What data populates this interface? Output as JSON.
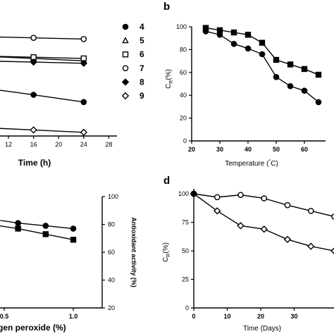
{
  "chart_data": [
    {
      "panel": "a",
      "type": "line",
      "title": "",
      "xlabel": "Time (h)",
      "ylabel": "",
      "xlim": [
        4,
        28
      ],
      "ylim": [
        0,
        100
      ],
      "x_ticks": [
        "12",
        "16",
        "20",
        "24",
        "28"
      ],
      "legend_position": "right",
      "legend": [
        "4",
        "5",
        "6",
        "7",
        "8",
        "9"
      ],
      "series": [
        {
          "name": "4",
          "marker": "circle-filled",
          "x": [
            16,
            24
          ],
          "y": [
            34,
            28
          ]
        },
        {
          "name": "5",
          "marker": "triangle-open",
          "x": [
            16,
            24
          ],
          "y": [
            64,
            62
          ]
        },
        {
          "name": "6",
          "marker": "square-open",
          "x": [
            16,
            24
          ],
          "y": [
            65,
            64
          ]
        },
        {
          "name": "7",
          "marker": "circle-open",
          "x": [
            16,
            24
          ],
          "y": [
            81,
            80
          ]
        },
        {
          "name": "8",
          "marker": "diamond-filled",
          "x": [
            16,
            24
          ],
          "y": [
            61,
            60
          ]
        },
        {
          "name": "9",
          "marker": "diamond-open",
          "x": [
            16,
            24
          ],
          "y": [
            5,
            3
          ]
        }
      ]
    },
    {
      "panel": "b",
      "type": "line",
      "title": "",
      "xlabel": "Temperature (°C)",
      "ylabel": "C_R(%)",
      "xlim": [
        20,
        70
      ],
      "ylim": [
        0,
        100
      ],
      "x_ticks": [
        "20",
        "30",
        "40",
        "50",
        "60"
      ],
      "y_ticks": [
        "0",
        "20",
        "40",
        "60",
        "80",
        "100"
      ],
      "series": [
        {
          "marker": "square-filled",
          "x": [
            25,
            30,
            35,
            40,
            45,
            50,
            55,
            60,
            65
          ],
          "y": [
            99,
            97,
            95,
            93,
            86,
            71,
            67,
            63,
            58
          ]
        },
        {
          "marker": "circle-filled",
          "x": [
            25,
            30,
            35,
            40,
            45,
            50,
            55,
            60,
            65
          ],
          "y": [
            96,
            93,
            85,
            81,
            76,
            56,
            48,
            44,
            34
          ]
        }
      ]
    },
    {
      "panel": "c",
      "type": "line",
      "title": "",
      "xlabel": "...gen peroxide (%)",
      "ylabel": "Antioxidant activity (%)",
      "xlim": [
        0.5,
        1.1
      ],
      "ylim": [
        20,
        100
      ],
      "x_ticks": [
        "0.5",
        "1.0"
      ],
      "y_ticks": [
        "20",
        "40",
        "60",
        "80",
        "100"
      ],
      "series": [
        {
          "marker": "circle-filled",
          "x": [
            0.4,
            0.6,
            0.8,
            1.0
          ],
          "y": [
            84,
            81,
            79,
            77
          ]
        },
        {
          "marker": "square-filled",
          "x": [
            0.4,
            0.6,
            0.8,
            1.0
          ],
          "y": [
            80,
            77,
            73,
            69
          ]
        }
      ]
    },
    {
      "panel": "d",
      "type": "line",
      "title": "",
      "xlabel": "Time (Days)",
      "ylabel": "C_R(%)",
      "xlim": [
        0,
        42
      ],
      "ylim": [
        0,
        100
      ],
      "x_ticks": [
        "0",
        "10",
        "20",
        "30"
      ],
      "y_ticks": [
        "0",
        "25",
        "50",
        "75",
        "100"
      ],
      "series": [
        {
          "marker": "circle-open",
          "x": [
            0,
            7,
            14,
            21,
            28,
            35,
            42
          ],
          "y": [
            100,
            97,
            99,
            96,
            90,
            85,
            80
          ]
        },
        {
          "marker": "diamond-open",
          "x": [
            0,
            7,
            14,
            21,
            28,
            35,
            42
          ],
          "y": [
            100,
            85,
            72,
            69,
            60,
            54,
            50
          ]
        }
      ]
    }
  ],
  "labels": {
    "panel_b": "b",
    "panel_d": "d",
    "a_xlabel": "Time (h)",
    "b_xlabel_pre": "Temperature (",
    "b_xlabel_deg": "°",
    "b_xlabel_post": "C)",
    "ylabel_c": "C",
    "ylabel_sub": "R",
    "ylabel_pct": "(%)",
    "c_ylabel": "Antioxidant activity (%)",
    "c_xlabel": "gen peroxide (%)",
    "d_xlabel": "Time (Days)"
  }
}
